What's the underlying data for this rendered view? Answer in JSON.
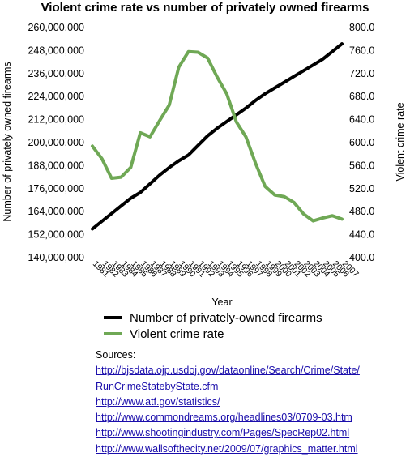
{
  "chart_data": {
    "type": "line",
    "title": "Violent crime rate vs number of privately owned firearms",
    "xlabel": "Year",
    "ylabel_left": "Number of privately owned firearms",
    "ylabel_right": "Violent crime rate",
    "categories": [
      "1981",
      "1982",
      "1983",
      "1984",
      "1985",
      "1986",
      "1987",
      "1988",
      "1989",
      "1990",
      "1991",
      "1992",
      "1993",
      "1994",
      "1995",
      "1996",
      "1997",
      "1998",
      "1999",
      "2000",
      "2001",
      "2002",
      "2003",
      "2004",
      "2005",
      "2006",
      "2007"
    ],
    "y_left_ticks": [
      "140,000,000",
      "152,000,000",
      "164,000,000",
      "176,000,000",
      "188,000,000",
      "200,000,000",
      "212,000,000",
      "224,000,000",
      "236,000,000",
      "248,000,000",
      "260,000,000"
    ],
    "y_right_ticks": [
      "400.0",
      "440.0",
      "480.0",
      "520.0",
      "560.0",
      "600.0",
      "640.0",
      "680.0",
      "720.0",
      "760.0",
      "800.0"
    ],
    "ylim_left": [
      140000000,
      260000000
    ],
    "ylim_right": [
      400,
      800
    ],
    "grid": false,
    "legend_position": "bottom",
    "series": [
      {
        "name": "Number of privately-owned firearms",
        "axis": "left",
        "color": "#000000",
        "values": [
          155000000,
          159000000,
          163000000,
          167000000,
          171000000,
          174000000,
          178500000,
          183000000,
          187000000,
          190500000,
          193500000,
          198500000,
          203500000,
          207500000,
          211000000,
          214500000,
          218000000,
          222000000,
          225500000,
          228500000,
          231500000,
          234500000,
          237500000,
          240500000,
          243500000,
          247500000,
          251500000
        ]
      },
      {
        "name": "Violent crime rate",
        "axis": "right",
        "color": "#6fa855",
        "values": [
          594,
          572,
          538,
          540,
          557,
          617,
          610,
          638,
          665,
          731,
          758,
          757,
          747,
          714,
          685,
          636,
          610,
          564,
          524,
          509,
          506,
          496,
          476,
          464,
          469,
          473,
          467
        ]
      }
    ]
  },
  "sources": {
    "heading": "Sources:",
    "links": [
      "http://bjsdata.ojp.usdoj.gov/dataonline/Search/Crime/State/",
      "RunCrimeStatebyState.cfm",
      "http://www.atf.gov/statistics/",
      "http://www.commondreams.org/headlines03/0709-03.htm",
      "http://www.shootingindustry.com/Pages/SpecRep02.html",
      "http://www.wallsofthecity.net/2009/07/graphics_matter.html"
    ]
  }
}
